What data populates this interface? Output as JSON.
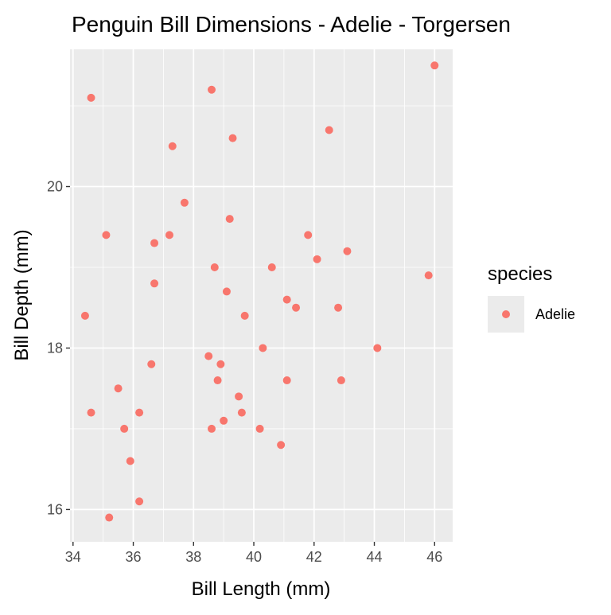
{
  "chart_data": {
    "type": "scatter",
    "title": "Penguin Bill Dimensions - Adelie - Torgersen",
    "xlabel": "Bill Length (mm)",
    "ylabel": "Bill Depth (mm)",
    "xlim": [
      33.9,
      46.6
    ],
    "ylim": [
      15.6,
      21.7
    ],
    "x_ticks": [
      34,
      36,
      38,
      40,
      42,
      44,
      46
    ],
    "y_ticks": [
      16,
      18,
      20
    ],
    "grid": true,
    "legend": {
      "title": "species",
      "placement": "right"
    },
    "series": [
      {
        "name": "Adelie",
        "color": "#F8766D",
        "points": [
          [
            46.0,
            21.5
          ],
          [
            34.6,
            21.1
          ],
          [
            38.6,
            21.2
          ],
          [
            39.3,
            20.6
          ],
          [
            42.5,
            20.7
          ],
          [
            37.3,
            20.5
          ],
          [
            37.7,
            19.8
          ],
          [
            35.1,
            19.4
          ],
          [
            37.2,
            19.4
          ],
          [
            39.2,
            19.6
          ],
          [
            41.8,
            19.4
          ],
          [
            36.7,
            19.3
          ],
          [
            43.1,
            19.2
          ],
          [
            42.1,
            19.1
          ],
          [
            38.7,
            19.0
          ],
          [
            40.6,
            19.0
          ],
          [
            45.8,
            18.9
          ],
          [
            36.7,
            18.8
          ],
          [
            39.1,
            18.7
          ],
          [
            41.1,
            18.6
          ],
          [
            41.4,
            18.5
          ],
          [
            42.8,
            18.5
          ],
          [
            34.4,
            18.4
          ],
          [
            39.7,
            18.4
          ],
          [
            40.3,
            18.0
          ],
          [
            44.1,
            18.0
          ],
          [
            38.5,
            17.9
          ],
          [
            36.6,
            17.8
          ],
          [
            38.9,
            17.8
          ],
          [
            38.8,
            17.6
          ],
          [
            41.1,
            17.6
          ],
          [
            42.9,
            17.6
          ],
          [
            35.5,
            17.5
          ],
          [
            39.5,
            17.4
          ],
          [
            34.6,
            17.2
          ],
          [
            36.2,
            17.2
          ],
          [
            39.6,
            17.2
          ],
          [
            39.0,
            17.1
          ],
          [
            35.7,
            17.0
          ],
          [
            38.6,
            17.0
          ],
          [
            40.2,
            17.0
          ],
          [
            40.9,
            16.8
          ],
          [
            35.9,
            16.6
          ],
          [
            36.2,
            16.1
          ],
          [
            35.2,
            15.9
          ]
        ]
      }
    ]
  }
}
